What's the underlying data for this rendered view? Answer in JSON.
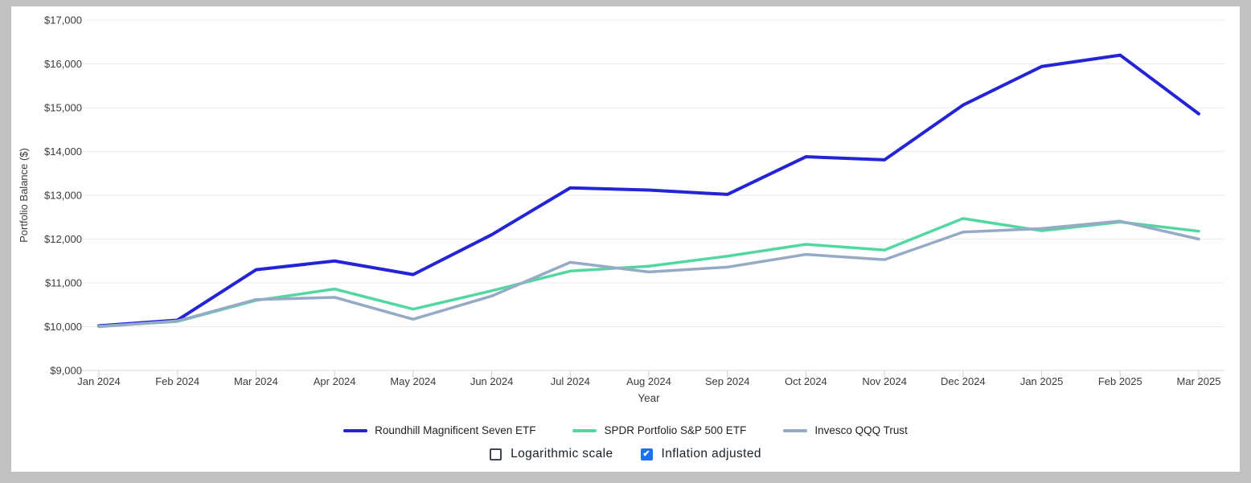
{
  "chart_data": {
    "type": "line",
    "xlabel": "Year",
    "ylabel": "Portfolio Balance ($)",
    "grid": true,
    "legend_position": "bottom",
    "ylim": [
      9000,
      17000
    ],
    "y_ticks": [
      9000,
      10000,
      11000,
      12000,
      13000,
      14000,
      15000,
      16000,
      17000
    ],
    "y_tick_labels": [
      "$9,000",
      "$10,000",
      "$11,000",
      "$12,000",
      "$13,000",
      "$14,000",
      "$15,000",
      "$16,000",
      "$17,000"
    ],
    "x": [
      "Jan 2024",
      "Feb 2024",
      "Mar 2024",
      "Apr 2024",
      "May 2024",
      "Jun 2024",
      "Jul 2024",
      "Aug 2024",
      "Sep 2024",
      "Oct 2024",
      "Nov 2024",
      "Dec 2024",
      "Jan 2025",
      "Feb 2025",
      "Mar 2025"
    ],
    "series": [
      {
        "name": "Roundhill Magnificent Seven ETF",
        "color": "#2424d6",
        "width": 4,
        "values": [
          10020,
          10150,
          11300,
          11500,
          11190,
          12100,
          13170,
          13120,
          13020,
          13880,
          13810,
          15060,
          15940,
          16200,
          14860
        ]
      },
      {
        "name": "SPDR Portfolio S&P 500 ETF",
        "color": "#53d7a2",
        "width": 3.5,
        "values": [
          10010,
          10120,
          10600,
          10860,
          10400,
          10820,
          11270,
          11380,
          11610,
          11880,
          11750,
          12470,
          12190,
          12390,
          12180
        ]
      },
      {
        "name": "Invesco QQQ Trust",
        "color": "#96aac5",
        "width": 3.5,
        "values": [
          10000,
          10130,
          10620,
          10670,
          10170,
          10700,
          11470,
          11250,
          11360,
          11650,
          11530,
          12160,
          12240,
          12410,
          12000
        ]
      }
    ],
    "colors": {
      "grid": "#ebebeb",
      "baseline": "#d9d9d9",
      "tick_mark": "#c8d1e6",
      "tick_label": "#3b3b3b",
      "axis_title": "#3b3b3b"
    }
  },
  "controls": {
    "logarithmic": {
      "label": "Logarithmic scale",
      "checked": false
    },
    "inflation": {
      "label": "Inflation adjusted",
      "checked": true
    }
  }
}
